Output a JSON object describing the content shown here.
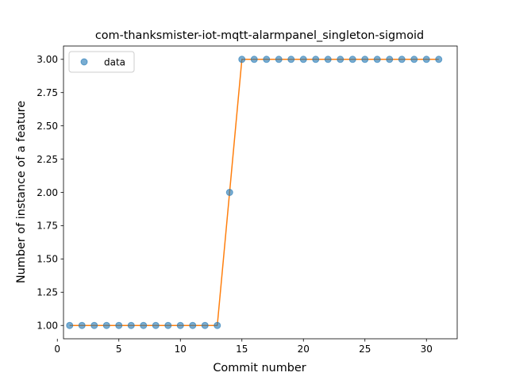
{
  "chart_data": {
    "type": "line",
    "title": "com-thanksmister-iot-mqtt-alarmpanel_singleton-sigmoid",
    "xlabel": "Commit number",
    "ylabel": "Number of instance of a feature",
    "xlim": [
      0.5,
      32.5
    ],
    "ylim": [
      0.9,
      3.1
    ],
    "xticks": [
      0,
      5,
      10,
      15,
      20,
      25,
      30
    ],
    "yticks": [
      1.0,
      1.25,
      1.5,
      1.75,
      2.0,
      2.25,
      2.5,
      2.75,
      3.0
    ],
    "ytick_labels": [
      "1.00",
      "1.25",
      "1.50",
      "1.75",
      "2.00",
      "2.25",
      "2.50",
      "2.75",
      "3.00"
    ],
    "grid": false,
    "legend_position": "top-left",
    "series": [
      {
        "name": "data",
        "kind": "scatter",
        "color": "#1f77b4",
        "x": [
          1,
          2,
          3,
          4,
          5,
          6,
          7,
          8,
          9,
          10,
          11,
          12,
          13,
          14,
          15,
          16,
          17,
          18,
          19,
          20,
          21,
          22,
          23,
          24,
          25,
          26,
          27,
          28,
          29,
          30,
          31
        ],
        "y": [
          1,
          1,
          1,
          1,
          1,
          1,
          1,
          1,
          1,
          1,
          1,
          1,
          1,
          2,
          3,
          3,
          3,
          3,
          3,
          3,
          3,
          3,
          3,
          3,
          3,
          3,
          3,
          3,
          3,
          3,
          3
        ]
      },
      {
        "kind": "line",
        "color": "#ff7f0e",
        "x": [
          1,
          2,
          3,
          4,
          5,
          6,
          7,
          8,
          9,
          10,
          11,
          12,
          13,
          14,
          15,
          16,
          17,
          18,
          19,
          20,
          21,
          22,
          23,
          24,
          25,
          26,
          27,
          28,
          29,
          30,
          31
        ],
        "y": [
          1,
          1,
          1,
          1,
          1,
          1,
          1,
          1,
          1,
          1,
          1,
          1,
          1,
          2,
          3,
          3,
          3,
          3,
          3,
          3,
          3,
          3,
          3,
          3,
          3,
          3,
          3,
          3,
          3,
          3,
          3
        ]
      }
    ]
  }
}
